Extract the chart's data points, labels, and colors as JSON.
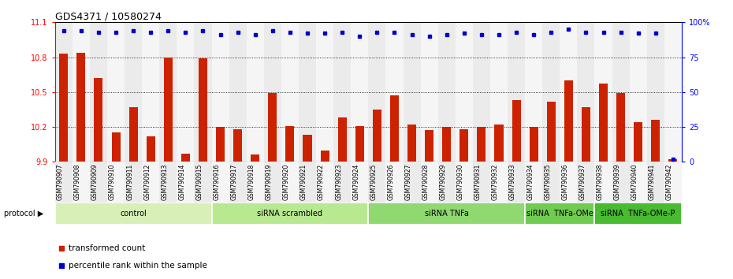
{
  "title": "GDS4371 / 10580274",
  "samples": [
    "GSM790907",
    "GSM790908",
    "GSM790909",
    "GSM790910",
    "GSM790911",
    "GSM790912",
    "GSM790913",
    "GSM790914",
    "GSM790915",
    "GSM790916",
    "GSM790917",
    "GSM790918",
    "GSM790919",
    "GSM790920",
    "GSM790921",
    "GSM790922",
    "GSM790923",
    "GSM790924",
    "GSM790925",
    "GSM790926",
    "GSM790927",
    "GSM790928",
    "GSM790929",
    "GSM790930",
    "GSM790931",
    "GSM790932",
    "GSM790933",
    "GSM790934",
    "GSM790935",
    "GSM790936",
    "GSM790937",
    "GSM790938",
    "GSM790939",
    "GSM790940",
    "GSM790941",
    "GSM790942"
  ],
  "bar_values": [
    10.83,
    10.84,
    10.62,
    10.15,
    10.37,
    10.12,
    10.8,
    9.97,
    10.79,
    10.2,
    10.18,
    9.96,
    10.49,
    10.21,
    10.13,
    10.0,
    10.28,
    10.21,
    10.35,
    10.47,
    10.22,
    10.17,
    10.2,
    10.18,
    10.2,
    10.22,
    10.43,
    10.2,
    10.42,
    10.6,
    10.37,
    10.57,
    10.49,
    10.24,
    10.26,
    9.92
  ],
  "percentile_values": [
    94,
    94,
    93,
    93,
    94,
    93,
    94,
    93,
    94,
    91,
    93,
    91,
    94,
    93,
    92,
    92,
    93,
    90,
    93,
    93,
    91,
    90,
    91,
    92,
    91,
    91,
    93,
    91,
    93,
    95,
    93,
    93,
    93,
    92,
    92,
    2
  ],
  "groups": [
    {
      "label": "control",
      "start": 0,
      "end": 9,
      "color": "#d8f0b8"
    },
    {
      "label": "siRNA scrambled",
      "start": 9,
      "end": 18,
      "color": "#b8e890"
    },
    {
      "label": "siRNA TNFa",
      "start": 18,
      "end": 27,
      "color": "#90d870"
    },
    {
      "label": "siRNA  TNFa-OMe",
      "start": 27,
      "end": 31,
      "color": "#70cc50"
    },
    {
      "label": "siRNA  TNFa-OMe-P",
      "start": 31,
      "end": 36,
      "color": "#48bb30"
    }
  ],
  "ylim_left": [
    9.9,
    11.1
  ],
  "ylim_right": [
    0,
    100
  ],
  "yticks_left": [
    9.9,
    10.2,
    10.5,
    10.8,
    11.1
  ],
  "yticks_right": [
    0,
    25,
    50,
    75,
    100
  ],
  "ytick_right_labels": [
    "0",
    "25",
    "50",
    "75",
    "100%"
  ],
  "bar_color": "#cc2200",
  "dot_color": "#0000cc",
  "legend_red_label": "transformed count",
  "legend_blue_label": "percentile rank within the sample",
  "protocol_label": "protocol"
}
